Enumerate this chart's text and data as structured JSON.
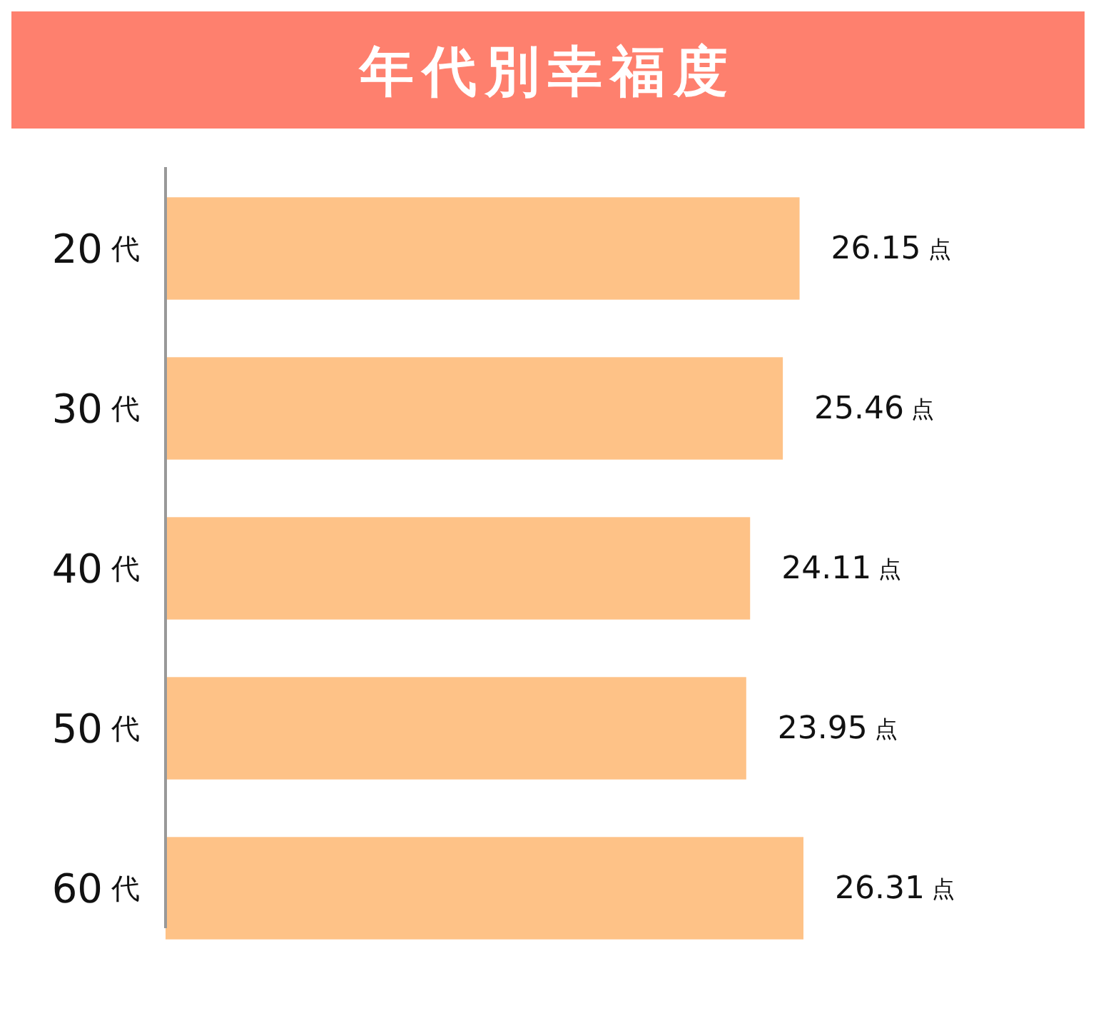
{
  "chart_data": {
    "type": "bar",
    "orientation": "horizontal",
    "title": "年代別幸福度",
    "categories": [
      "20代",
      "30代",
      "40代",
      "50代",
      "60代"
    ],
    "values": [
      26.15,
      25.46,
      24.11,
      23.95,
      26.31
    ],
    "value_labels": [
      "26.15 点",
      "25.46 点",
      "24.11 点",
      "23.95 点",
      "26.31 点"
    ],
    "color": "#fec287"
  }
}
